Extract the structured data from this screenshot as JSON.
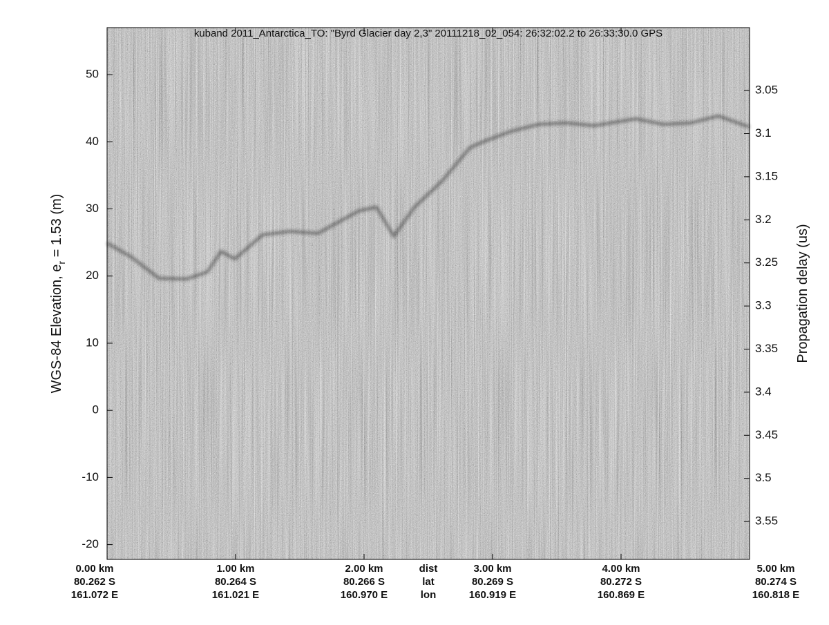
{
  "chart_data": {
    "type": "echogram",
    "title": "kuband 2011_Antarctica_TO: \"Byrd Glacier day 2,3\"  20111218_02_054: 26:32:02.2 to 26:33:30.0 GPS",
    "ylabel": [
      "WGS-84 Elevation, e",
      "r",
      " = 1.53 (m)"
    ],
    "y2label": "Propagation delay (us)",
    "ylim": [
      -22.2,
      57.0
    ],
    "yticks": [
      -20,
      -10,
      0,
      10,
      20,
      30,
      40,
      50
    ],
    "y2lim": [
      3.594,
      2.977
    ],
    "y2ticks": [
      3.05,
      3.1,
      3.15,
      3.2,
      3.25,
      3.3,
      3.35,
      3.4,
      3.45,
      3.5,
      3.55
    ],
    "xlim": [
      0,
      5
    ],
    "xticks": [
      {
        "value": 0,
        "label": "0.00 km"
      },
      {
        "value": 1,
        "label": "1.00 km"
      },
      {
        "value": 2,
        "label": "2.00 km"
      },
      {
        "value": 3,
        "label": "3.00 km"
      },
      {
        "value": 4,
        "label": "4.00 km"
      },
      {
        "value": 5,
        "label": "5.00 km"
      }
    ],
    "lat_labels": [
      "80.262 S",
      "80.264 S",
      "80.266 S",
      "80.269 S",
      "80.272 S",
      "80.274 S"
    ],
    "lon_labels": [
      "161.072 E",
      "161.021 E",
      "160.970 E",
      "160.919 E",
      "160.869 E",
      "160.818 E"
    ],
    "row_labels": [
      "dist",
      "lat",
      "lon"
    ]
  }
}
